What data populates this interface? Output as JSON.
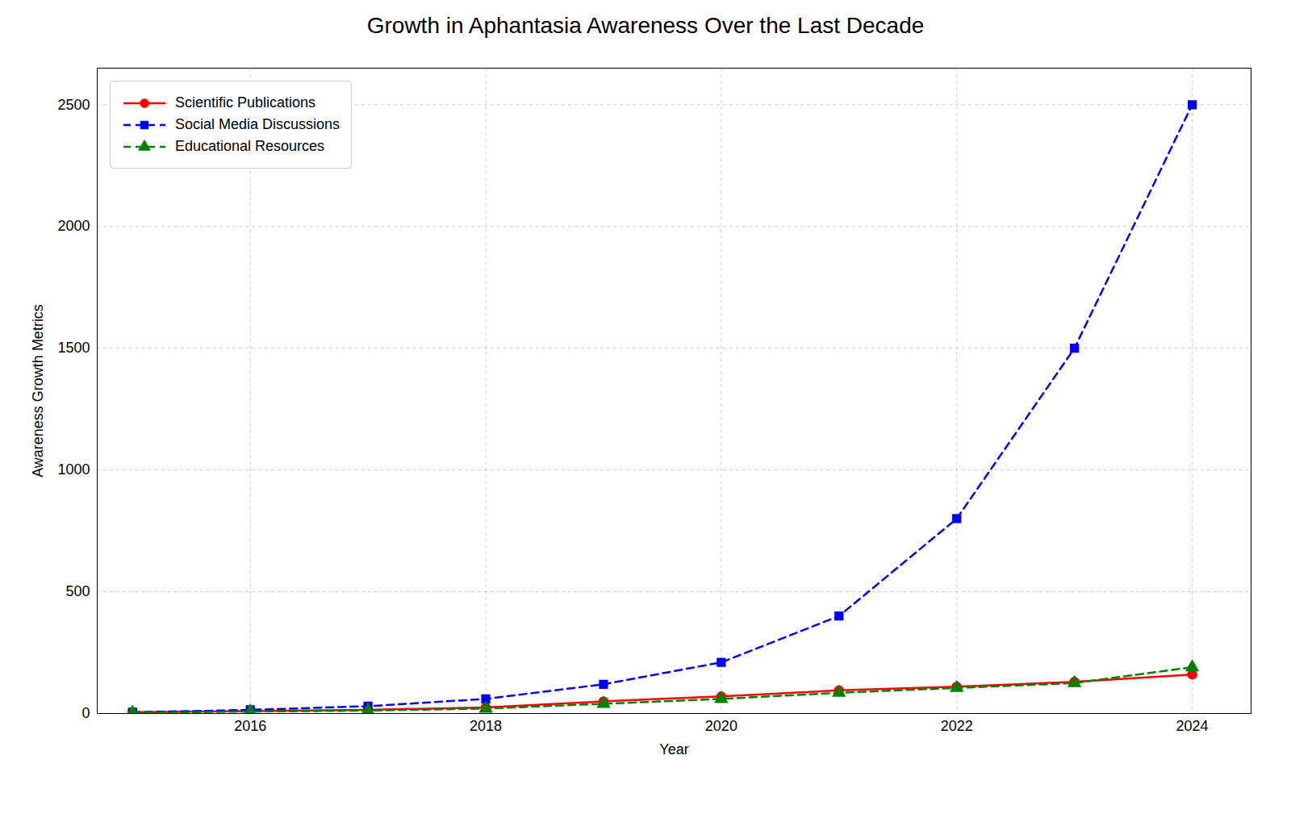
{
  "chart_data": {
    "type": "line",
    "title": "Growth in Aphantasia Awareness Over the Last Decade",
    "xlabel": "Year",
    "ylabel": "Awareness Growth Metrics",
    "x": [
      2015,
      2016,
      2017,
      2018,
      2019,
      2020,
      2021,
      2022,
      2023,
      2024
    ],
    "series": [
      {
        "name": "Scientific Publications",
        "color": "#FF0000",
        "marker": "circle",
        "line_style": "solid",
        "values": [
          5,
          10,
          15,
          25,
          50,
          70,
          95,
          110,
          130,
          160
        ]
      },
      {
        "name": "Social Media Discussions",
        "color": "#0000FF",
        "marker": "square",
        "line_style": "dashed",
        "values": [
          5,
          15,
          30,
          60,
          120,
          210,
          400,
          800,
          1500,
          2500
        ]
      },
      {
        "name": "Educational Resources",
        "color": "#008000",
        "marker": "triangle",
        "line_style": "dashed",
        "values": [
          3,
          8,
          12,
          20,
          40,
          60,
          85,
          105,
          125,
          190
        ]
      }
    ],
    "xlim": [
      2014.7,
      2024.5
    ],
    "xticks": [
      2016,
      2018,
      2020,
      2022,
      2024
    ],
    "ylim": [
      0,
      2650
    ],
    "yticks": [
      0,
      500,
      1000,
      1500,
      2000,
      2500
    ],
    "grid": true,
    "legend": "upper left"
  }
}
